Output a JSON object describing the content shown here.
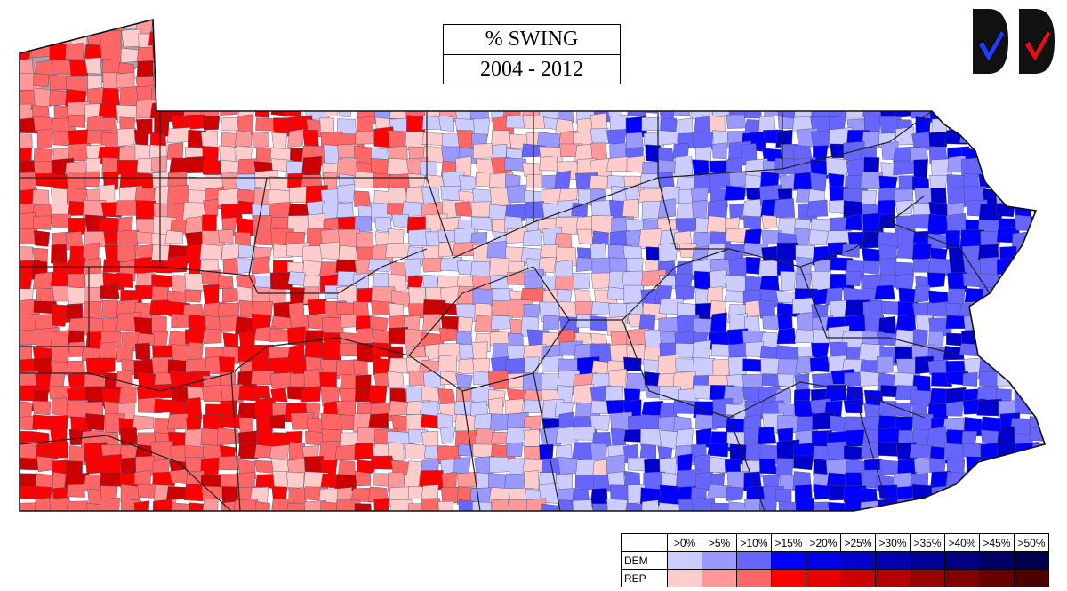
{
  "title": {
    "line1": "% SWING",
    "line2": "2004 - 2012"
  },
  "logos": [
    {
      "name": "dem-checkmark-logo",
      "icon": "blue-checkmark-icon",
      "color": "#1e3cff",
      "badge_color": "#111111"
    },
    {
      "name": "rep-checkmark-logo",
      "icon": "red-checkmark-icon",
      "color": "#e01010",
      "badge_color": "#111111"
    }
  ],
  "legend": {
    "thresholds": [
      ">0%",
      ">5%",
      ">10%",
      ">15%",
      ">20%",
      ">25%",
      ">30%",
      ">35%",
      ">40%",
      ">45%",
      ">50%"
    ],
    "rows": [
      {
        "label": "DEM",
        "colors": [
          "#ccccff",
          "#9999ff",
          "#6666ff",
          "#0000ff",
          "#0000e6",
          "#0000cc",
          "#0000b3",
          "#000099",
          "#000080",
          "#000066",
          "#00004d"
        ]
      },
      {
        "label": "REP",
        "colors": [
          "#ffcccc",
          "#ff9999",
          "#ff6666",
          "#ff0000",
          "#e60000",
          "#cc0000",
          "#b30000",
          "#990000",
          "#800000",
          "#660000",
          "#4d0000"
        ]
      }
    ]
  },
  "map": {
    "region": "Pennsylvania",
    "lake_color": "#a6a6a6",
    "border_color": "#222222",
    "no_data_color": "#ffffff"
  }
}
